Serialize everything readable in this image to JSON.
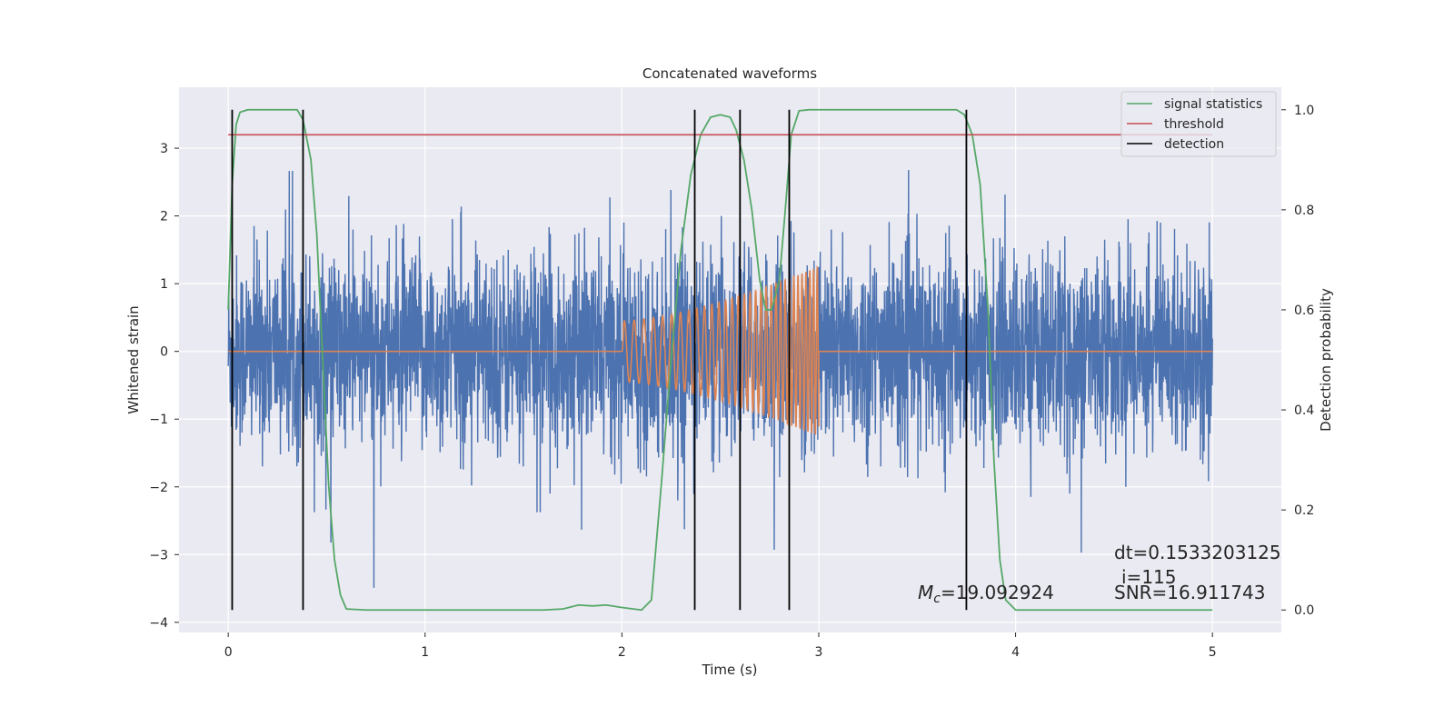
{
  "chart_data": {
    "type": "line",
    "title": "Concatenated waveforms",
    "xlabel": "Time (s)",
    "ylabel_left": "Whitened strain",
    "ylabel_right": "Detection probability",
    "xlim": [
      -0.25,
      5.35
    ],
    "ylim_left": [
      -4.15,
      3.9
    ],
    "ylim_right": [
      -0.045,
      1.045
    ],
    "x_ticks": [
      0,
      1,
      2,
      3,
      4,
      5
    ],
    "y_left_ticks": [
      -4,
      -3,
      -2,
      -1,
      0,
      1,
      2,
      3
    ],
    "y_right_ticks": [
      0.0,
      0.2,
      0.4,
      0.6,
      0.8,
      1.0
    ],
    "grid": true,
    "legend_position": "top-right",
    "background": "#eaeaf2",
    "series": [
      {
        "name": "",
        "axis": "left",
        "color": "#4c72b0",
        "kind": "noise",
        "x_range": [
          0,
          5
        ],
        "typical_amplitude": 0.7,
        "peak_range": [
          -3.8,
          3.3
        ]
      },
      {
        "name": "",
        "axis": "left",
        "color": "#dd8452",
        "kind": "chirp",
        "x_range": [
          0,
          5
        ],
        "chirp_start": 2.0,
        "chirp_end": 3.0,
        "chirp_amplitude_start": 0.45,
        "chirp_amplitude_end": 1.25,
        "chirp_frequency_start": 20,
        "chirp_frequency_end": 55
      },
      {
        "name": "signal statistics",
        "axis": "right",
        "color": "#55a868",
        "points": [
          [
            0.0,
            0.6
          ],
          [
            0.02,
            0.85
          ],
          [
            0.04,
            0.97
          ],
          [
            0.06,
            0.995
          ],
          [
            0.1,
            1.0
          ],
          [
            0.35,
            1.0
          ],
          [
            0.38,
            0.98
          ],
          [
            0.42,
            0.9
          ],
          [
            0.45,
            0.75
          ],
          [
            0.48,
            0.5
          ],
          [
            0.51,
            0.25
          ],
          [
            0.54,
            0.1
          ],
          [
            0.57,
            0.03
          ],
          [
            0.6,
            0.002
          ],
          [
            0.7,
            0.0
          ],
          [
            1.6,
            0.0
          ],
          [
            1.7,
            0.002
          ],
          [
            1.78,
            0.01
          ],
          [
            1.85,
            0.008
          ],
          [
            1.92,
            0.01
          ],
          [
            2.0,
            0.005
          ],
          [
            2.1,
            0.0
          ],
          [
            2.15,
            0.02
          ],
          [
            2.2,
            0.25
          ],
          [
            2.25,
            0.5
          ],
          [
            2.3,
            0.72
          ],
          [
            2.35,
            0.87
          ],
          [
            2.4,
            0.95
          ],
          [
            2.45,
            0.985
          ],
          [
            2.5,
            0.99
          ],
          [
            2.55,
            0.985
          ],
          [
            2.58,
            0.96
          ],
          [
            2.62,
            0.9
          ],
          [
            2.66,
            0.8
          ],
          [
            2.7,
            0.66
          ],
          [
            2.73,
            0.6
          ],
          [
            2.76,
            0.6
          ],
          [
            2.8,
            0.66
          ],
          [
            2.83,
            0.8
          ],
          [
            2.86,
            0.95
          ],
          [
            2.9,
            0.998
          ],
          [
            2.95,
            1.0
          ],
          [
            3.7,
            1.0
          ],
          [
            3.74,
            0.99
          ],
          [
            3.78,
            0.95
          ],
          [
            3.82,
            0.85
          ],
          [
            3.86,
            0.6
          ],
          [
            3.89,
            0.3
          ],
          [
            3.92,
            0.1
          ],
          [
            3.95,
            0.02
          ],
          [
            4.0,
            0.0
          ],
          [
            5.0,
            0.0
          ]
        ]
      },
      {
        "name": "threshold",
        "axis": "right",
        "color": "#c44e52",
        "points": [
          [
            0.0,
            0.95
          ],
          [
            5.0,
            0.95
          ]
        ]
      },
      {
        "name": "detection",
        "axis": "right",
        "color": "#000000",
        "kind": "vlines",
        "x": [
          0.02,
          0.38,
          2.37,
          2.6,
          2.85,
          3.75
        ],
        "y_range": [
          0.0,
          1.0
        ]
      }
    ],
    "annotations": {
      "mc_symbol": "M",
      "mc_sub": "c",
      "mc_value": "=19.092924",
      "dt": "dt=0.1533203125",
      "i": "i=115",
      "snr": "SNR=16.911743"
    }
  }
}
